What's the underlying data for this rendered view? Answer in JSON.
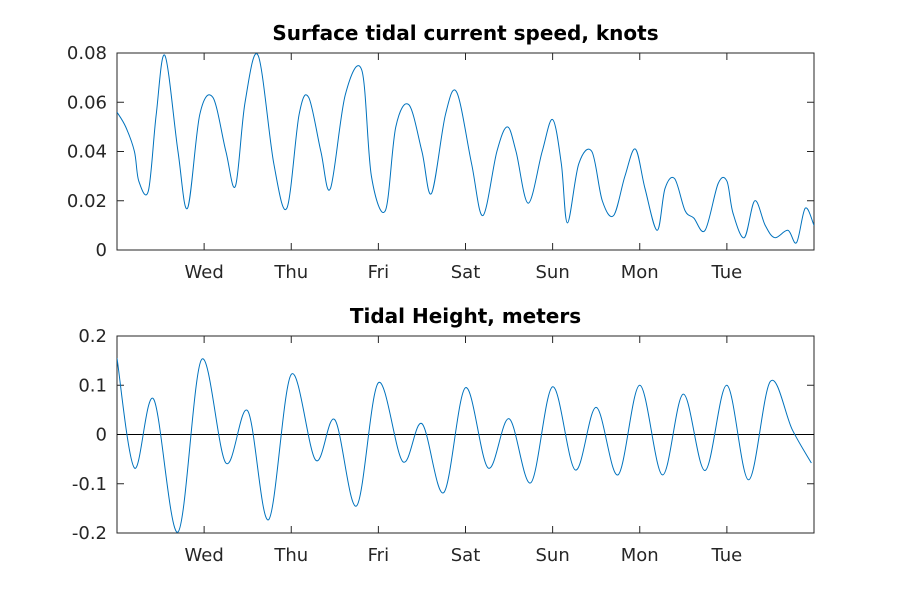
{
  "chart_data": [
    {
      "type": "line",
      "title": "Surface tidal current speed, knots",
      "xlabel": "",
      "ylabel": "",
      "x_unit": "days",
      "xlim": [
        0,
        8
      ],
      "ylim": [
        0,
        0.08
      ],
      "yticks": [
        0,
        0.02,
        0.04,
        0.06,
        0.08
      ],
      "ytick_labels": [
        "0",
        "0.02",
        "0.04",
        "0.06",
        "0.08"
      ],
      "xticks": [
        1,
        2,
        3,
        4,
        5,
        6,
        7
      ],
      "xtick_labels": [
        "Wed",
        "Thu",
        "Fri",
        "Sat",
        "Sun",
        "Mon",
        "Tue"
      ],
      "grid": false,
      "color": "#0072bd",
      "series": [
        {
          "x": [
            0,
            0.1,
            0.2,
            0.25,
            0.36,
            0.45,
            0.55,
            0.7,
            0.81,
            0.95,
            1.1,
            1.25,
            1.36,
            1.47,
            1.62,
            1.8,
            1.95,
            2.09,
            2.2,
            2.34,
            2.45,
            2.62,
            2.81,
            2.92,
            3.08,
            3.2,
            3.35,
            3.5,
            3.61,
            3.77,
            3.9,
            4.07,
            4.2,
            4.36,
            4.48,
            4.58,
            4.72,
            4.88,
            5.0,
            5.1,
            5.17,
            5.3,
            5.45,
            5.57,
            5.7,
            5.83,
            5.95,
            6.06,
            6.2,
            6.29,
            6.4,
            6.52,
            6.62,
            6.75,
            6.9,
            7.0,
            7.07,
            7.2,
            7.32,
            7.44,
            7.55,
            7.7,
            7.8,
            7.9,
            8.0
          ],
          "y": [
            0.056,
            0.05,
            0.04,
            0.028,
            0.024,
            0.055,
            0.079,
            0.04,
            0.017,
            0.055,
            0.062,
            0.04,
            0.026,
            0.06,
            0.079,
            0.035,
            0.017,
            0.055,
            0.062,
            0.04,
            0.025,
            0.063,
            0.073,
            0.03,
            0.016,
            0.05,
            0.059,
            0.04,
            0.023,
            0.055,
            0.064,
            0.035,
            0.014,
            0.04,
            0.05,
            0.04,
            0.019,
            0.04,
            0.053,
            0.035,
            0.011,
            0.035,
            0.04,
            0.02,
            0.014,
            0.03,
            0.041,
            0.025,
            0.008,
            0.025,
            0.029,
            0.016,
            0.013,
            0.008,
            0.027,
            0.028,
            0.015,
            0.005,
            0.02,
            0.01,
            0.005,
            0.008,
            0.003,
            0.017,
            0.01
          ]
        }
      ]
    },
    {
      "type": "line",
      "title": "Tidal Height, meters",
      "xlabel": "",
      "ylabel": "",
      "x_unit": "days",
      "xlim": [
        0,
        8
      ],
      "ylim": [
        -0.2,
        0.2
      ],
      "yticks": [
        -0.2,
        -0.1,
        0,
        0.1,
        0.2
      ],
      "ytick_labels": [
        "-0.2",
        "-0.1",
        "0",
        "0.1",
        "0.2"
      ],
      "xticks": [
        1,
        2,
        3,
        4,
        5,
        6,
        7
      ],
      "xtick_labels": [
        "Wed",
        "Thu",
        "Fri",
        "Sat",
        "Sun",
        "Mon",
        "Tue"
      ],
      "grid": false,
      "zero_line": true,
      "color": "#0072bd",
      "series": [
        {
          "x": [
            0,
            0.2,
            0.42,
            0.7,
            0.97,
            1.25,
            1.5,
            1.74,
            2.0,
            2.28,
            2.5,
            2.75,
            3.0,
            3.28,
            3.5,
            3.75,
            4.0,
            4.26,
            4.5,
            4.75,
            5.0,
            5.26,
            5.5,
            5.75,
            6.0,
            6.26,
            6.5,
            6.75,
            7.0,
            7.25,
            7.5,
            7.75,
            7.97
          ],
          "y": [
            0.155,
            -0.068,
            0.072,
            -0.198,
            0.152,
            -0.058,
            0.048,
            -0.173,
            0.122,
            -0.052,
            0.03,
            -0.145,
            0.105,
            -0.055,
            0.022,
            -0.118,
            0.095,
            -0.068,
            0.032,
            -0.098,
            0.097,
            -0.072,
            0.055,
            -0.082,
            0.1,
            -0.082,
            0.082,
            -0.073,
            0.1,
            -0.092,
            0.108,
            0.01,
            -0.058
          ]
        }
      ]
    }
  ]
}
